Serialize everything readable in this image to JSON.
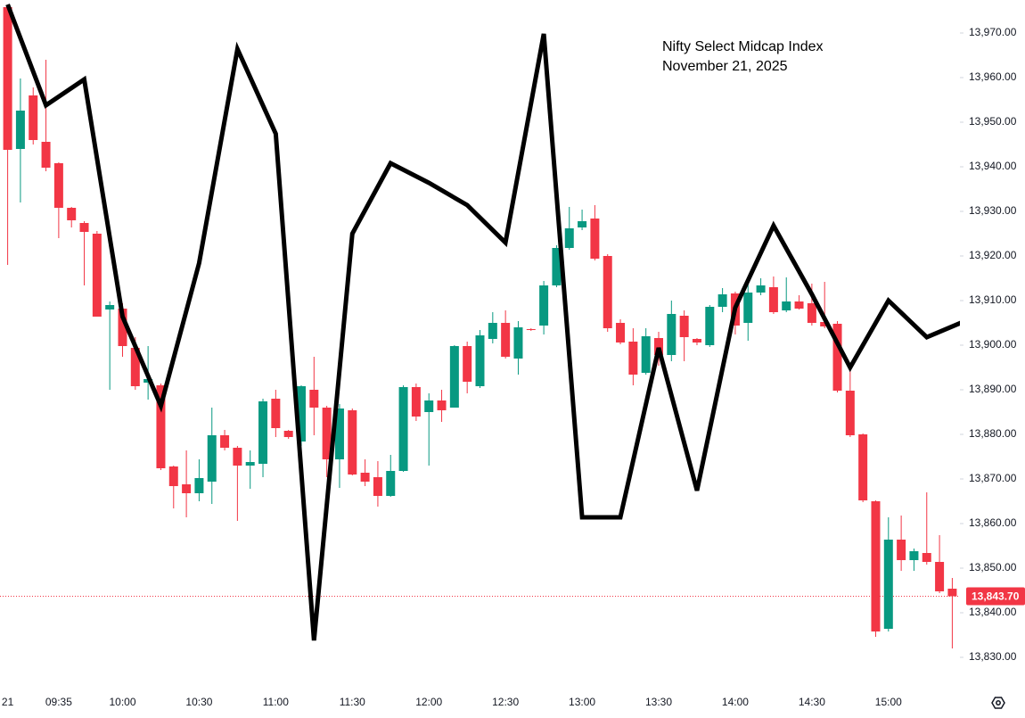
{
  "chart_data": {
    "type": "candlestick",
    "title": "Nifty Select Midcap Index",
    "subtitle": "November 21, 2025",
    "x": [
      "09:15",
      "09:20",
      "09:25",
      "09:30",
      "09:35",
      "09:40",
      "09:45",
      "09:50",
      "09:55",
      "10:00",
      "10:05",
      "10:10",
      "10:15",
      "10:20",
      "10:25",
      "10:30",
      "10:35",
      "10:40",
      "10:45",
      "10:50",
      "10:55",
      "11:00",
      "11:05",
      "11:10",
      "11:15",
      "11:20",
      "11:25",
      "11:30",
      "11:35",
      "11:40",
      "11:45",
      "11:50",
      "11:55",
      "12:00",
      "12:05",
      "12:10",
      "12:15",
      "12:20",
      "12:25",
      "12:30",
      "12:35",
      "12:40",
      "12:45",
      "12:50",
      "12:55",
      "13:00",
      "13:05",
      "13:10",
      "13:15",
      "13:20",
      "13:25",
      "13:30",
      "13:35",
      "13:40",
      "13:45",
      "13:50",
      "13:55",
      "14:00",
      "14:05",
      "14:10",
      "14:15",
      "14:20",
      "14:25",
      "14:30",
      "14:35",
      "14:40",
      "14:45",
      "14:50",
      "14:55",
      "15:00",
      "15:05",
      "15:10",
      "15:15",
      "15:20",
      "15:25"
    ],
    "open": [
      13975.8,
      13944,
      13956,
      13945.6,
      13940.8,
      13930.8,
      13927.4,
      13925,
      13908,
      13908.2,
      13899.4,
      13891.6,
      13891,
      13872.8,
      13868.8,
      13866.8,
      13869.4,
      13879.8,
      13877,
      13873,
      13873.4,
      13888,
      13880.8,
      13878.4,
      13890,
      13886,
      13874.4,
      13885.4,
      13871.4,
      13870.4,
      13866.2,
      13871.8,
      13890.6,
      13885,
      13887.6,
      13886,
      13899.8,
      13890.8,
      13901.4,
      13905,
      13897,
      13903.6,
      13904.4,
      13913.4,
      13921.8,
      13926.4,
      13928.4,
      13920,
      13905,
      13900.8,
      13893.8,
      13901.6,
      13897.8,
      13906.6,
      13901.4,
      13900,
      13908.6,
      13911.6,
      13905,
      13911.8,
      13913,
      13907.8,
      13909.8,
      13909.4,
      13905.2,
      13904.8,
      13889.8,
      13880,
      13865,
      13836.4,
      13856.4,
      13851.8,
      13853.4,
      13851.4,
      13845.4
    ],
    "high": [
      13976,
      13959.8,
      13957.8,
      13964,
      13941,
      13931,
      13927.8,
      13925.6,
      13909.8,
      13909.4,
      13901.8,
      13899.8,
      13891.4,
      13873,
      13876.4,
      13874.4,
      13886,
      13881,
      13877.4,
      13876.4,
      13888,
      13890,
      13881,
      13891,
      13897.4,
      13886.4,
      13886.8,
      13885.8,
      13874.4,
      13874,
      13875.4,
      13891,
      13891.4,
      13889.2,
      13890,
      13900,
      13900.8,
      13903.4,
      13907.4,
      13907.8,
      13905.4,
      13903.8,
      13914.4,
      13922.4,
      13931,
      13930.4,
      13931.4,
      13920.4,
      13905.8,
      13903.8,
      13903.8,
      13903,
      13910,
      13907.8,
      13901.6,
      13909,
      13912.8,
      13912,
      13915.4,
      13915,
      13915.4,
      13915.2,
      13911.2,
      13913.8,
      13914.2,
      13905.4,
      13895,
      13880.2,
      13865.2,
      13861.4,
      13861.8,
      13854.4,
      13867,
      13857.4,
      13847.8
    ],
    "low": [
      13918,
      13932,
      13945,
      13939,
      13924,
      13926.4,
      13913.4,
      13906.4,
      13890,
      13897.4,
      13890,
      13887.8,
      13872,
      13863.4,
      13861.4,
      13865,
      13864.4,
      13876.4,
      13860.6,
      13867.8,
      13870.4,
      13879.4,
      13879,
      13877.4,
      13879.8,
      13870.4,
      13868,
      13870.8,
      13868.4,
      13863.8,
      13866,
      13871.6,
      13883,
      13873,
      13882.8,
      13886,
      13889.2,
      13890.4,
      13900.4,
      13897,
      13893.4,
      13903.2,
      13902.4,
      13913,
      13921.4,
      13925.8,
      13919,
      13903,
      13900.2,
      13891,
      13893.4,
      13895.4,
      13896.4,
      13896.4,
      13900,
      13899.6,
      13907.4,
      13902.4,
      13901,
      13911.2,
      13907,
      13907.4,
      13908,
      13904.4,
      13903.8,
      13889.4,
      13879.4,
      13864.8,
      13834.6,
      13835.8,
      13849.4,
      13849.4,
      13850.8,
      13844.4,
      13832
    ],
    "close": [
      13943.8,
      13952.6,
      13946,
      13939.8,
      13930.8,
      13928,
      13925.4,
      13906.4,
      13909,
      13899.8,
      13890.8,
      13892.4,
      13872.4,
      13868.4,
      13866.8,
      13870.2,
      13879.8,
      13877,
      13873,
      13873.8,
      13887.4,
      13881.4,
      13879.4,
      13890.8,
      13886,
      13874.4,
      13885.8,
      13871,
      13869.4,
      13866.2,
      13871.8,
      13890.6,
      13884,
      13887.6,
      13885.4,
      13899.8,
      13891.8,
      13902.2,
      13905,
      13897.4,
      13904,
      13903.4,
      13913.4,
      13921.8,
      13926.2,
      13927.8,
      13919.4,
      13903.8,
      13900.6,
      13893.4,
      13902,
      13897.8,
      13907,
      13901.8,
      13900.6,
      13908.6,
      13911.4,
      13904.4,
      13911.8,
      13913.4,
      13907.4,
      13909.8,
      13908.2,
      13905,
      13904.2,
      13889.8,
      13879.8,
      13865.2,
      13835.8,
      13856.4,
      13851.8,
      13853.8,
      13851.4,
      13844.8,
      13843.7
    ],
    "up_color": "#089981",
    "down_color": "#f23645",
    "line": {
      "color": "#000000",
      "x": [
        "09:15",
        "09:30",
        "09:45",
        "10:00",
        "10:15",
        "10:30",
        "10:45",
        "11:00",
        "11:15",
        "11:30",
        "11:45",
        "12:00",
        "12:15",
        "12:30",
        "12:45",
        "13:00",
        "13:15",
        "13:30",
        "13:45",
        "14:00",
        "14:15",
        "14:30",
        "14:45",
        "15:00",
        "15:15",
        "15:30"
      ],
      "values": [
        13976.4,
        13953.8,
        13959.6,
        13906.4,
        13886.4,
        13918.4,
        13966.4,
        13947.4,
        13833.8,
        13925,
        13940.8,
        13936.4,
        13931.4,
        13923,
        13969.8,
        13861.4,
        13861.4,
        13899.4,
        13867.4,
        13908.4,
        13926.8,
        13911.4,
        13895,
        13910,
        13901.8,
        13905.4
      ]
    },
    "last_price": {
      "value": 13843.7,
      "label": "13,843.70"
    },
    "xlim": [
      "09:12",
      "15:28"
    ],
    "xticks": [
      {
        "value": "09:15",
        "label": "21"
      },
      "09:35",
      "10:00",
      "10:30",
      "11:00",
      "11:30",
      "12:00",
      "12:30",
      "13:00",
      "13:30",
      "14:00",
      "14:30",
      "15:00"
    ],
    "ylim": [
      13825.4,
      13977.4
    ],
    "yticks": [
      {
        "value": 13830,
        "label": "13,830.00"
      },
      {
        "value": 13840,
        "label": "13,840.00"
      },
      {
        "value": 13850,
        "label": "13,850.00"
      },
      {
        "value": 13860,
        "label": "13,860.00"
      },
      {
        "value": 13870,
        "label": "13,870.00"
      },
      {
        "value": 13880,
        "label": "13,880.00"
      },
      {
        "value": 13890,
        "label": "13,890.00"
      },
      {
        "value": 13900,
        "label": "13,900.00"
      },
      {
        "value": 13910,
        "label": "13,910.00"
      },
      {
        "value": 13920,
        "label": "13,920.00"
      },
      {
        "value": 13930,
        "label": "13,930.00"
      },
      {
        "value": 13940,
        "label": "13,940.00"
      },
      {
        "value": 13950,
        "label": "13,950.00"
      },
      {
        "value": 13960,
        "label": "13,960.00"
      },
      {
        "value": 13970,
        "label": "13,970.00"
      }
    ]
  }
}
